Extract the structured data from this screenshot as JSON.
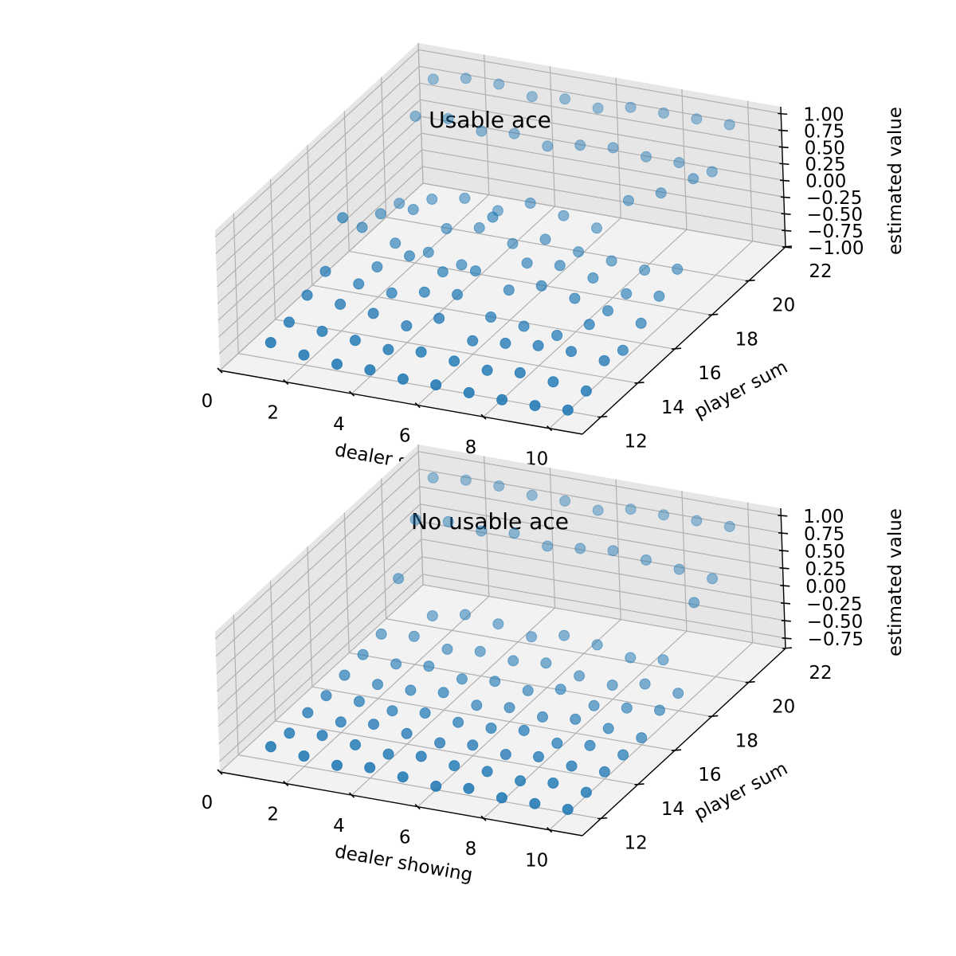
{
  "colors": {
    "marker": "#1f77b4",
    "pane_light": "#f2f2f2",
    "pane_dark": "#e6e6e6",
    "grid": "#b0b0b0"
  },
  "chart_data": [
    {
      "type": "scatter",
      "projection": "3d",
      "title": "Usable ace",
      "xlabel": "dealer showing",
      "ylabel": "player sum",
      "zlabel": "estimated value",
      "xlim": [
        0,
        11
      ],
      "ylim": [
        11,
        22
      ],
      "zlim": [
        -1.0,
        1.1
      ],
      "xticks": [
        "0",
        "2",
        "4",
        "6",
        "8",
        "10"
      ],
      "yticks": [
        "12",
        "14",
        "16",
        "18",
        "20",
        "22"
      ],
      "zticks": [
        "−1.00",
        "−0.75",
        "−0.50",
        "−0.25",
        "0.00",
        "0.25",
        "0.50",
        "0.75",
        "1.00"
      ],
      "grid": true,
      "series": [
        {
          "x": [
            1,
            2,
            3,
            4,
            5,
            6,
            7,
            8,
            9,
            10
          ],
          "y": [
            21,
            21,
            21,
            21,
            21,
            21,
            21,
            21,
            21,
            21
          ],
          "z": [
            0.9,
            1.0,
            1.0,
            0.9,
            0.95,
            0.9,
            1.0,
            1.0,
            1.0,
            1.0
          ]
        },
        {
          "x": [
            1,
            2,
            3,
            4,
            5,
            6,
            7,
            8,
            9,
            10
          ],
          "y": [
            20,
            20,
            20,
            20,
            20,
            20,
            20,
            20,
            20,
            20
          ],
          "z": [
            0.6,
            0.65,
            0.55,
            0.6,
            0.5,
            0.6,
            0.65,
            0.6,
            0.6,
            0.55
          ]
        },
        {
          "x": [
            1,
            2,
            3,
            4,
            5,
            6,
            7,
            8,
            9,
            10
          ],
          "y": [
            19,
            19,
            19,
            19,
            19,
            19,
            19,
            19,
            19,
            19
          ],
          "z": [
            -0.45,
            -0.3,
            -0.2,
            -0.3,
            -0.1,
            -0.2,
            -0.3,
            0.2,
            0.4,
            0.7
          ]
        },
        {
          "x": [
            1,
            2,
            3,
            4,
            5,
            6,
            7,
            8,
            9,
            10
          ],
          "y": [
            18,
            18,
            18,
            18,
            18,
            18,
            18,
            18,
            18,
            18
          ],
          "z": [
            -0.35,
            -0.2,
            -0.4,
            -0.3,
            -0.45,
            -0.3,
            -0.4,
            -0.45,
            -0.5,
            -0.4
          ]
        },
        {
          "x": [
            1,
            2,
            3,
            4,
            5,
            6,
            7,
            8,
            9,
            10
          ],
          "y": [
            17,
            17,
            17,
            17,
            17,
            17,
            17,
            17,
            17,
            17
          ],
          "z": [
            -0.3,
            -0.45,
            -0.5,
            -0.6,
            0.2,
            -0.4,
            -0.35,
            -0.45,
            -0.6,
            -0.55
          ]
        },
        {
          "x": [
            1,
            2,
            3,
            4,
            5,
            6,
            7,
            8,
            9,
            10
          ],
          "y": [
            16,
            16,
            16,
            16,
            16,
            16,
            16,
            16,
            16,
            16
          ],
          "z": [
            0.1,
            -0.55,
            -0.3,
            -0.45,
            -0.35,
            -0.55,
            -0.4,
            -0.5,
            -0.6,
            -0.7
          ]
        },
        {
          "x": [
            1,
            2,
            3,
            4,
            5,
            6,
            7,
            8,
            9,
            10
          ],
          "y": [
            15,
            15,
            15,
            15,
            15,
            15,
            15,
            15,
            15,
            15
          ],
          "z": [
            -0.45,
            -0.55,
            -0.6,
            -0.5,
            -0.45,
            -0.7,
            -0.75,
            -0.8,
            -0.55,
            -0.85
          ]
        },
        {
          "x": [
            1,
            2,
            3,
            4,
            5,
            6,
            7,
            8,
            9,
            10
          ],
          "y": [
            14,
            14,
            14,
            14,
            14,
            14,
            14,
            14,
            14,
            14
          ],
          "z": [
            -0.55,
            -0.6,
            -0.65,
            -0.75,
            -0.55,
            -0.8,
            -0.75,
            -0.7,
            -0.7,
            -0.75
          ]
        },
        {
          "x": [
            1,
            2,
            3,
            4,
            5,
            6,
            7,
            8,
            9,
            10
          ],
          "y": [
            13,
            13,
            13,
            13,
            13,
            13,
            13,
            13,
            13,
            13
          ],
          "z": [
            -0.7,
            -0.75,
            -0.8,
            -0.85,
            -0.8,
            -0.85,
            -0.9,
            -0.85,
            -0.9,
            -0.95
          ]
        },
        {
          "x": [
            1,
            2,
            3,
            4,
            5,
            6,
            7,
            8,
            9,
            10
          ],
          "y": [
            12,
            12,
            12,
            12,
            12,
            12,
            12,
            12,
            12,
            12
          ],
          "z": [
            -0.75,
            -0.85,
            -0.9,
            -0.9,
            -0.95,
            -0.95,
            -0.98,
            -1.0,
            -1.0,
            -0.98
          ]
        }
      ]
    },
    {
      "type": "scatter",
      "projection": "3d",
      "title": "No usable ace",
      "xlabel": "dealer showing",
      "ylabel": "player sum",
      "zlabel": "estimated value",
      "xlim": [
        0,
        11
      ],
      "ylim": [
        11,
        22
      ],
      "zlim": [
        -0.9,
        1.1
      ],
      "xticks": [
        "0",
        "2",
        "4",
        "6",
        "8",
        "10"
      ],
      "yticks": [
        "12",
        "14",
        "16",
        "18",
        "20",
        "22"
      ],
      "zticks": [
        "−0.75",
        "−0.50",
        "−0.25",
        "0.00",
        "0.25",
        "0.50",
        "0.75",
        "1.00"
      ],
      "grid": true,
      "series": [
        {
          "x": [
            1,
            2,
            3,
            4,
            5,
            6,
            7,
            8,
            9,
            10
          ],
          "y": [
            21,
            21,
            21,
            21,
            21,
            21,
            21,
            21,
            21,
            21
          ],
          "z": [
            0.95,
            1.0,
            1.0,
            0.95,
            0.95,
            0.9,
            1.0,
            1.0,
            1.0,
            1.0
          ]
        },
        {
          "x": [
            1,
            2,
            3,
            4,
            5,
            6,
            7,
            8,
            9,
            10
          ],
          "y": [
            20,
            20,
            20,
            20,
            20,
            20,
            20,
            20,
            20,
            20
          ],
          "z": [
            0.6,
            0.65,
            0.6,
            0.65,
            0.55,
            0.6,
            0.65,
            0.6,
            0.55,
            0.5
          ]
        },
        {
          "x": [
            1,
            2,
            3,
            4,
            5,
            6,
            7,
            8,
            9,
            10
          ],
          "y": [
            19,
            19,
            19,
            19,
            19,
            19,
            19,
            19,
            19,
            19
          ],
          "z": [
            0.0,
            -0.45,
            -0.35,
            -0.4,
            -0.5,
            -0.4,
            -0.45,
            -0.55,
            -0.5,
            0.4
          ]
        },
        {
          "x": [
            1,
            2,
            3,
            4,
            5,
            6,
            7,
            8,
            9,
            10
          ],
          "y": [
            18,
            18,
            18,
            18,
            18,
            18,
            18,
            18,
            18,
            18
          ],
          "z": [
            -0.55,
            -0.5,
            -0.6,
            -0.55,
            -0.6,
            -0.55,
            -0.65,
            -0.7,
            -0.6,
            -0.65
          ]
        },
        {
          "x": [
            1,
            2,
            3,
            4,
            5,
            6,
            7,
            8,
            9,
            10
          ],
          "y": [
            17,
            17,
            17,
            17,
            17,
            17,
            17,
            17,
            17,
            17
          ],
          "z": [
            -0.6,
            -0.65,
            -0.6,
            -0.7,
            -0.65,
            -0.7,
            -0.6,
            -0.75,
            -0.7,
            -0.65
          ]
        },
        {
          "x": [
            1,
            2,
            3,
            4,
            5,
            6,
            7,
            8,
            9,
            10
          ],
          "y": [
            16,
            16,
            16,
            16,
            16,
            16,
            16,
            16,
            16,
            16
          ],
          "z": [
            -0.65,
            -0.7,
            -0.7,
            -0.65,
            -0.75,
            -0.7,
            -0.75,
            -0.7,
            -0.75,
            -0.8
          ]
        },
        {
          "x": [
            1,
            2,
            3,
            4,
            5,
            6,
            7,
            8,
            9,
            10
          ],
          "y": [
            15,
            15,
            15,
            15,
            15,
            15,
            15,
            15,
            15,
            15
          ],
          "z": [
            -0.7,
            -0.7,
            -0.75,
            -0.7,
            -0.75,
            -0.75,
            -0.7,
            -0.8,
            -0.75,
            -0.8
          ]
        },
        {
          "x": [
            1,
            2,
            3,
            4,
            5,
            6,
            7,
            8,
            9,
            10
          ],
          "y": [
            14,
            14,
            14,
            14,
            14,
            14,
            14,
            14,
            14,
            14
          ],
          "z": [
            -0.7,
            -0.75,
            -0.7,
            -0.75,
            -0.8,
            -0.75,
            -0.8,
            -0.75,
            -0.8,
            -0.8
          ]
        },
        {
          "x": [
            1,
            2,
            3,
            4,
            5,
            6,
            7,
            8,
            9,
            10
          ],
          "y": [
            13,
            13,
            13,
            13,
            13,
            13,
            13,
            13,
            13,
            13
          ],
          "z": [
            -0.75,
            -0.7,
            -0.75,
            -0.8,
            -0.75,
            -0.8,
            -0.8,
            -0.85,
            -0.8,
            -0.85
          ]
        },
        {
          "x": [
            1,
            2,
            3,
            4,
            5,
            6,
            7,
            8,
            9,
            10
          ],
          "y": [
            12,
            12,
            12,
            12,
            12,
            12,
            12,
            12,
            12,
            12
          ],
          "z": [
            -0.7,
            -0.75,
            -0.8,
            -0.75,
            -0.8,
            -0.85,
            -0.8,
            -0.85,
            -0.85,
            -0.85
          ]
        }
      ]
    }
  ]
}
